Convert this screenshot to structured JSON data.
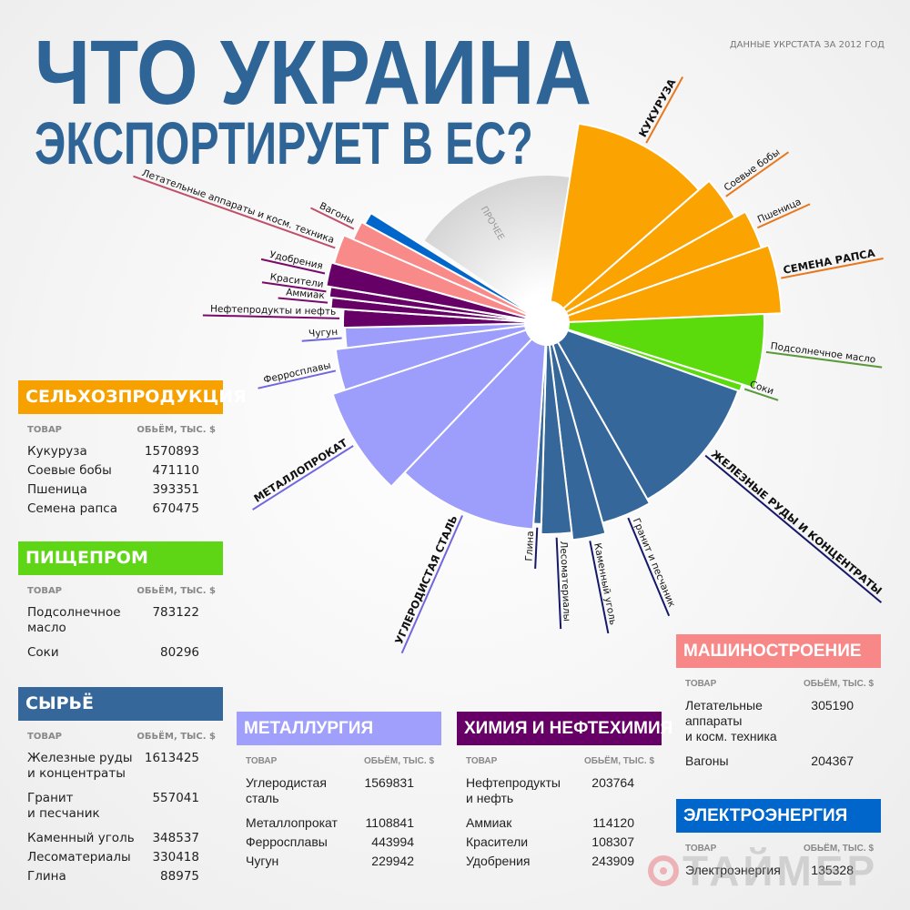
{
  "header": {
    "title_line1": "ЧТО УКРАИНА",
    "title_line2": "ЭКСПОРТИРУЕТ В ЕС?",
    "source": "ДАННЫЕ УКРСТАТА ЗА 2012 ГОД"
  },
  "chart_data": {
    "type": "pie",
    "note_label": "ПРОЧЕЕ",
    "unit": "тыс. $",
    "groups": [
      {
        "name": "СЕЛЬХОЗПРОДУКЦИЯ",
        "color": "#fba300",
        "line": "#e8781e"
      },
      {
        "name": "ПИЩЕПРОМ",
        "color": "#5cdb0c",
        "line": "#5a9a3a"
      },
      {
        "name": "СЫРЬЁ",
        "color": "#35679a",
        "line": "#16186a"
      },
      {
        "name": "МЕТАЛЛУРГИЯ",
        "color": "#9d9dfb",
        "line": "#6f66e0"
      },
      {
        "name": "ХИМИЯ И НЕФТЕХИМИЯ",
        "color": "#660066",
        "line": "#7a0a6a"
      },
      {
        "name": "МАШИНОСТРОЕНИЕ",
        "color": "#f98a8a",
        "line": "#c0506a"
      },
      {
        "name": "ЭЛЕКТРОЭНЕРГИЯ",
        "color": "#0066cc",
        "line": "#0066cc"
      }
    ],
    "items": [
      {
        "label": "КУКУРУЗА",
        "value": 1570893,
        "group": 0,
        "bold": true
      },
      {
        "label": "Соевые бобы",
        "value": 471110,
        "group": 0
      },
      {
        "label": "Пшеница",
        "value": 393351,
        "group": 0
      },
      {
        "label": "СЕМЕНА РАПСА",
        "value": 670475,
        "group": 0,
        "bold": true
      },
      {
        "label": "Подсолнечное масло",
        "value": 783122,
        "group": 1
      },
      {
        "label": "Соки",
        "value": 80296,
        "group": 1
      },
      {
        "label": "ЖЕЛЕЗНЫЕ РУДЫ И КОНЦЕНТРАТЫ",
        "value": 1613425,
        "group": 2,
        "bold": true
      },
      {
        "label": "Гранит и песчаник",
        "value": 557041,
        "group": 2
      },
      {
        "label": "Каменный уголь",
        "value": 348537,
        "group": 2
      },
      {
        "label": "Лесоматериалы",
        "value": 330418,
        "group": 2
      },
      {
        "label": "Глина",
        "value": 88975,
        "group": 2
      },
      {
        "label": "УГЛЕРОДИСТАЯ СТАЛЬ",
        "value": 1569831,
        "group": 3,
        "bold": true
      },
      {
        "label": "МЕТАЛЛОПРОКАТ",
        "value": 1108841,
        "group": 3,
        "bold": true
      },
      {
        "label": "Ферросплавы",
        "value": 443994,
        "group": 3
      },
      {
        "label": "Чугун",
        "value": 229942,
        "group": 3
      },
      {
        "label": "Нефтепродукты и нефть",
        "value": 203764,
        "group": 4
      },
      {
        "label": "Аммиак",
        "value": 114120,
        "group": 4
      },
      {
        "label": "Красители",
        "value": 108307,
        "group": 4
      },
      {
        "label": "Удобрения",
        "value": 243909,
        "group": 4
      },
      {
        "label": "Летательные аппараты и косм. техника",
        "value": 305190,
        "group": 5
      },
      {
        "label": "Вагоны",
        "value": 204367,
        "group": 5
      },
      {
        "label": "",
        "value": 135328,
        "group": 6
      }
    ]
  },
  "tables": [
    {
      "title": "СЕЛЬХОЗПРОДУКЦИЯ",
      "color": "#f7a100",
      "col_item": "ТОВАР",
      "col_value": "ОБЬЁМ, ТЫС. $",
      "rows": [
        [
          "Кукуруза",
          "1570893"
        ],
        [
          "Соевые бобы",
          "471110"
        ],
        [
          "Пшеница",
          "393351"
        ],
        [
          "Семена рапса",
          "670475"
        ]
      ]
    },
    {
      "title": "ПИЩЕПРОМ",
      "color": "#5ed616",
      "col_item": "ТОВАР",
      "col_value": "ОБЬЁМ, ТЫС. $",
      "rows": [
        [
          "Подсолнечное\nмасло",
          "783122"
        ],
        [
          "Соки",
          "80296"
        ]
      ]
    },
    {
      "title": "СЫРЬЁ",
      "color": "#35679a",
      "col_item": "ТОВАР",
      "col_value": "ОБЬЁМ, ТЫС. $",
      "rows": [
        [
          "Железные руды\nи концентраты",
          "1613425"
        ],
        [
          "Гранит\nи песчаник",
          "557041"
        ],
        [
          "Каменный уголь",
          "348537"
        ],
        [
          "Лесоматериалы",
          "330418"
        ],
        [
          "Глина",
          "88975"
        ]
      ]
    },
    {
      "title": "МЕТАЛЛУРГИЯ",
      "color": "#a0a0fc",
      "col_item": "ТОВАР",
      "col_value": "ОБЬЁМ, ТЫС. $",
      "rows": [
        [
          "Углеродистая\nсталь",
          "1569831"
        ],
        [
          "Металлопрокат",
          "1108841"
        ],
        [
          "Ферросплавы",
          "443994"
        ],
        [
          "Чугун",
          "229942"
        ]
      ]
    },
    {
      "title": "ХИМИЯ И НЕФТЕХИМИЯ",
      "color": "#660066",
      "col_item": "ТОВАР",
      "col_value": "ОБЬЁМ, ТЫС. $",
      "rows": [
        [
          "Нефтепродукты\nи нефть",
          "203764"
        ],
        [
          "Аммиак",
          "114120"
        ],
        [
          "Красители",
          "108307"
        ],
        [
          "Удобрения",
          "243909"
        ]
      ]
    },
    {
      "title": "МАШИНОСТРОЕНИЕ",
      "color": "#f88888",
      "col_item": "ТОВАР",
      "col_value": "ОБЬЁМ, ТЫС. $",
      "rows": [
        [
          "Летательные\nаппараты\nи косм. техника",
          "305190"
        ],
        [
          "Вагоны",
          "204367"
        ]
      ]
    },
    {
      "title": "ЭЛЕКТРОЭНЕРГИЯ",
      "color": "#0066cc",
      "col_item": "ТОВАР",
      "col_value": "ОБЬЁМ, ТЫС. $",
      "rows": [
        [
          "Электроэнергия",
          "135328"
        ]
      ]
    }
  ],
  "watermark": {
    "text": "ТАЙМЕР",
    "icon": "timer-logo-icon"
  }
}
